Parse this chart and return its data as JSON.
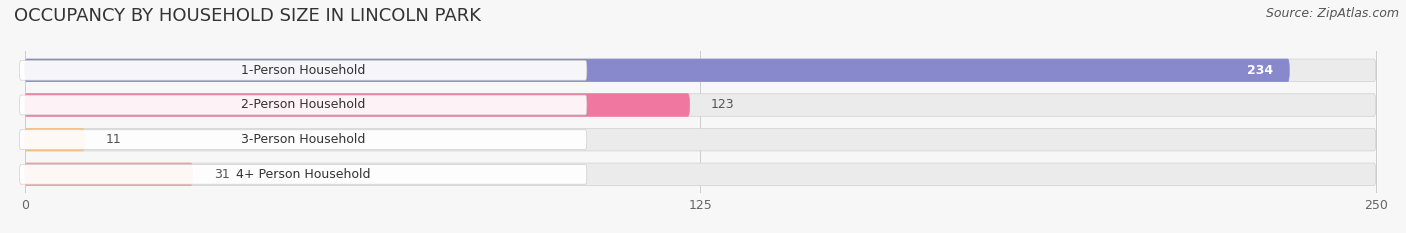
{
  "title": "OCCUPANCY BY HOUSEHOLD SIZE IN LINCOLN PARK",
  "source": "Source: ZipAtlas.com",
  "categories": [
    "1-Person Household",
    "2-Person Household",
    "3-Person Household",
    "4+ Person Household"
  ],
  "values": [
    234,
    123,
    11,
    31
  ],
  "bar_colors": [
    "#8888cc",
    "#f077a0",
    "#f5bf80",
    "#f0a090"
  ],
  "xlim_max": 250,
  "xticks": [
    0,
    125,
    250
  ],
  "background_color": "#f7f7f7",
  "bar_bg_color": "#ebebeb",
  "title_fontsize": 13,
  "source_fontsize": 9,
  "cat_fontsize": 9,
  "val_fontsize": 9
}
